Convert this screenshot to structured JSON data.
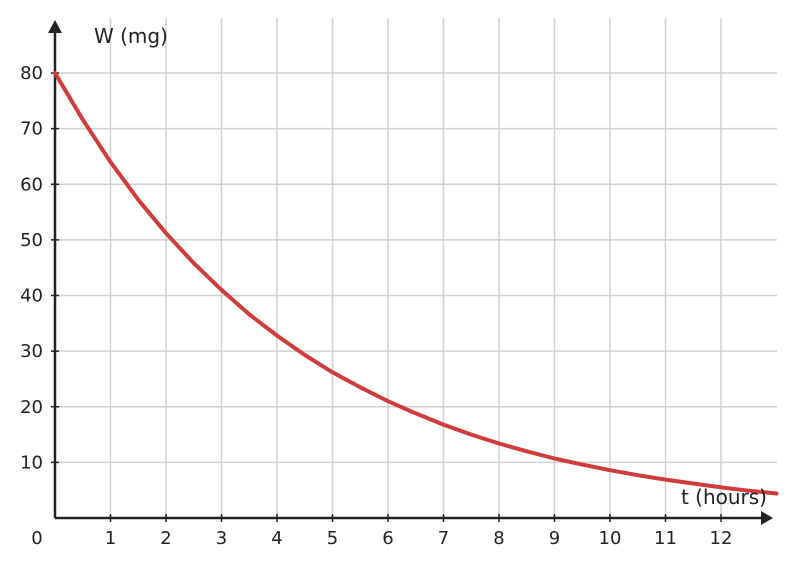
{
  "chart_data": {
    "type": "line",
    "xlabel": "t (hours)",
    "ylabel": "W (mg)",
    "origin_label": "0",
    "xlim": [
      0,
      13
    ],
    "ylim": [
      0,
      80
    ],
    "x_ticks": [
      1,
      2,
      3,
      4,
      5,
      6,
      7,
      8,
      9,
      10,
      11,
      12
    ],
    "y_ticks": [
      10,
      20,
      30,
      40,
      50,
      60,
      70,
      80
    ],
    "grid": true,
    "series": [
      {
        "color": "#d13b3b",
        "x": [
          0,
          0.5,
          1,
          1.5,
          2,
          2.5,
          3,
          3.5,
          4,
          4.5,
          5,
          5.5,
          6,
          6.5,
          7,
          7.5,
          8,
          8.5,
          9,
          9.5,
          10,
          10.5,
          11,
          11.5,
          12,
          12.5,
          13
        ],
        "y": [
          80,
          71.6,
          64,
          57.2,
          51.2,
          45.8,
          41,
          36.6,
          32.8,
          29.3,
          26.2,
          23.5,
          21,
          18.8,
          16.8,
          15,
          13.4,
          12,
          10.7,
          9.6,
          8.6,
          7.7,
          6.9,
          6.2,
          5.5,
          4.9,
          4.4
        ]
      }
    ]
  },
  "colors": {
    "grid": "#d0d0d0",
    "axis": "#222222",
    "curve": "#d13b3b"
  }
}
